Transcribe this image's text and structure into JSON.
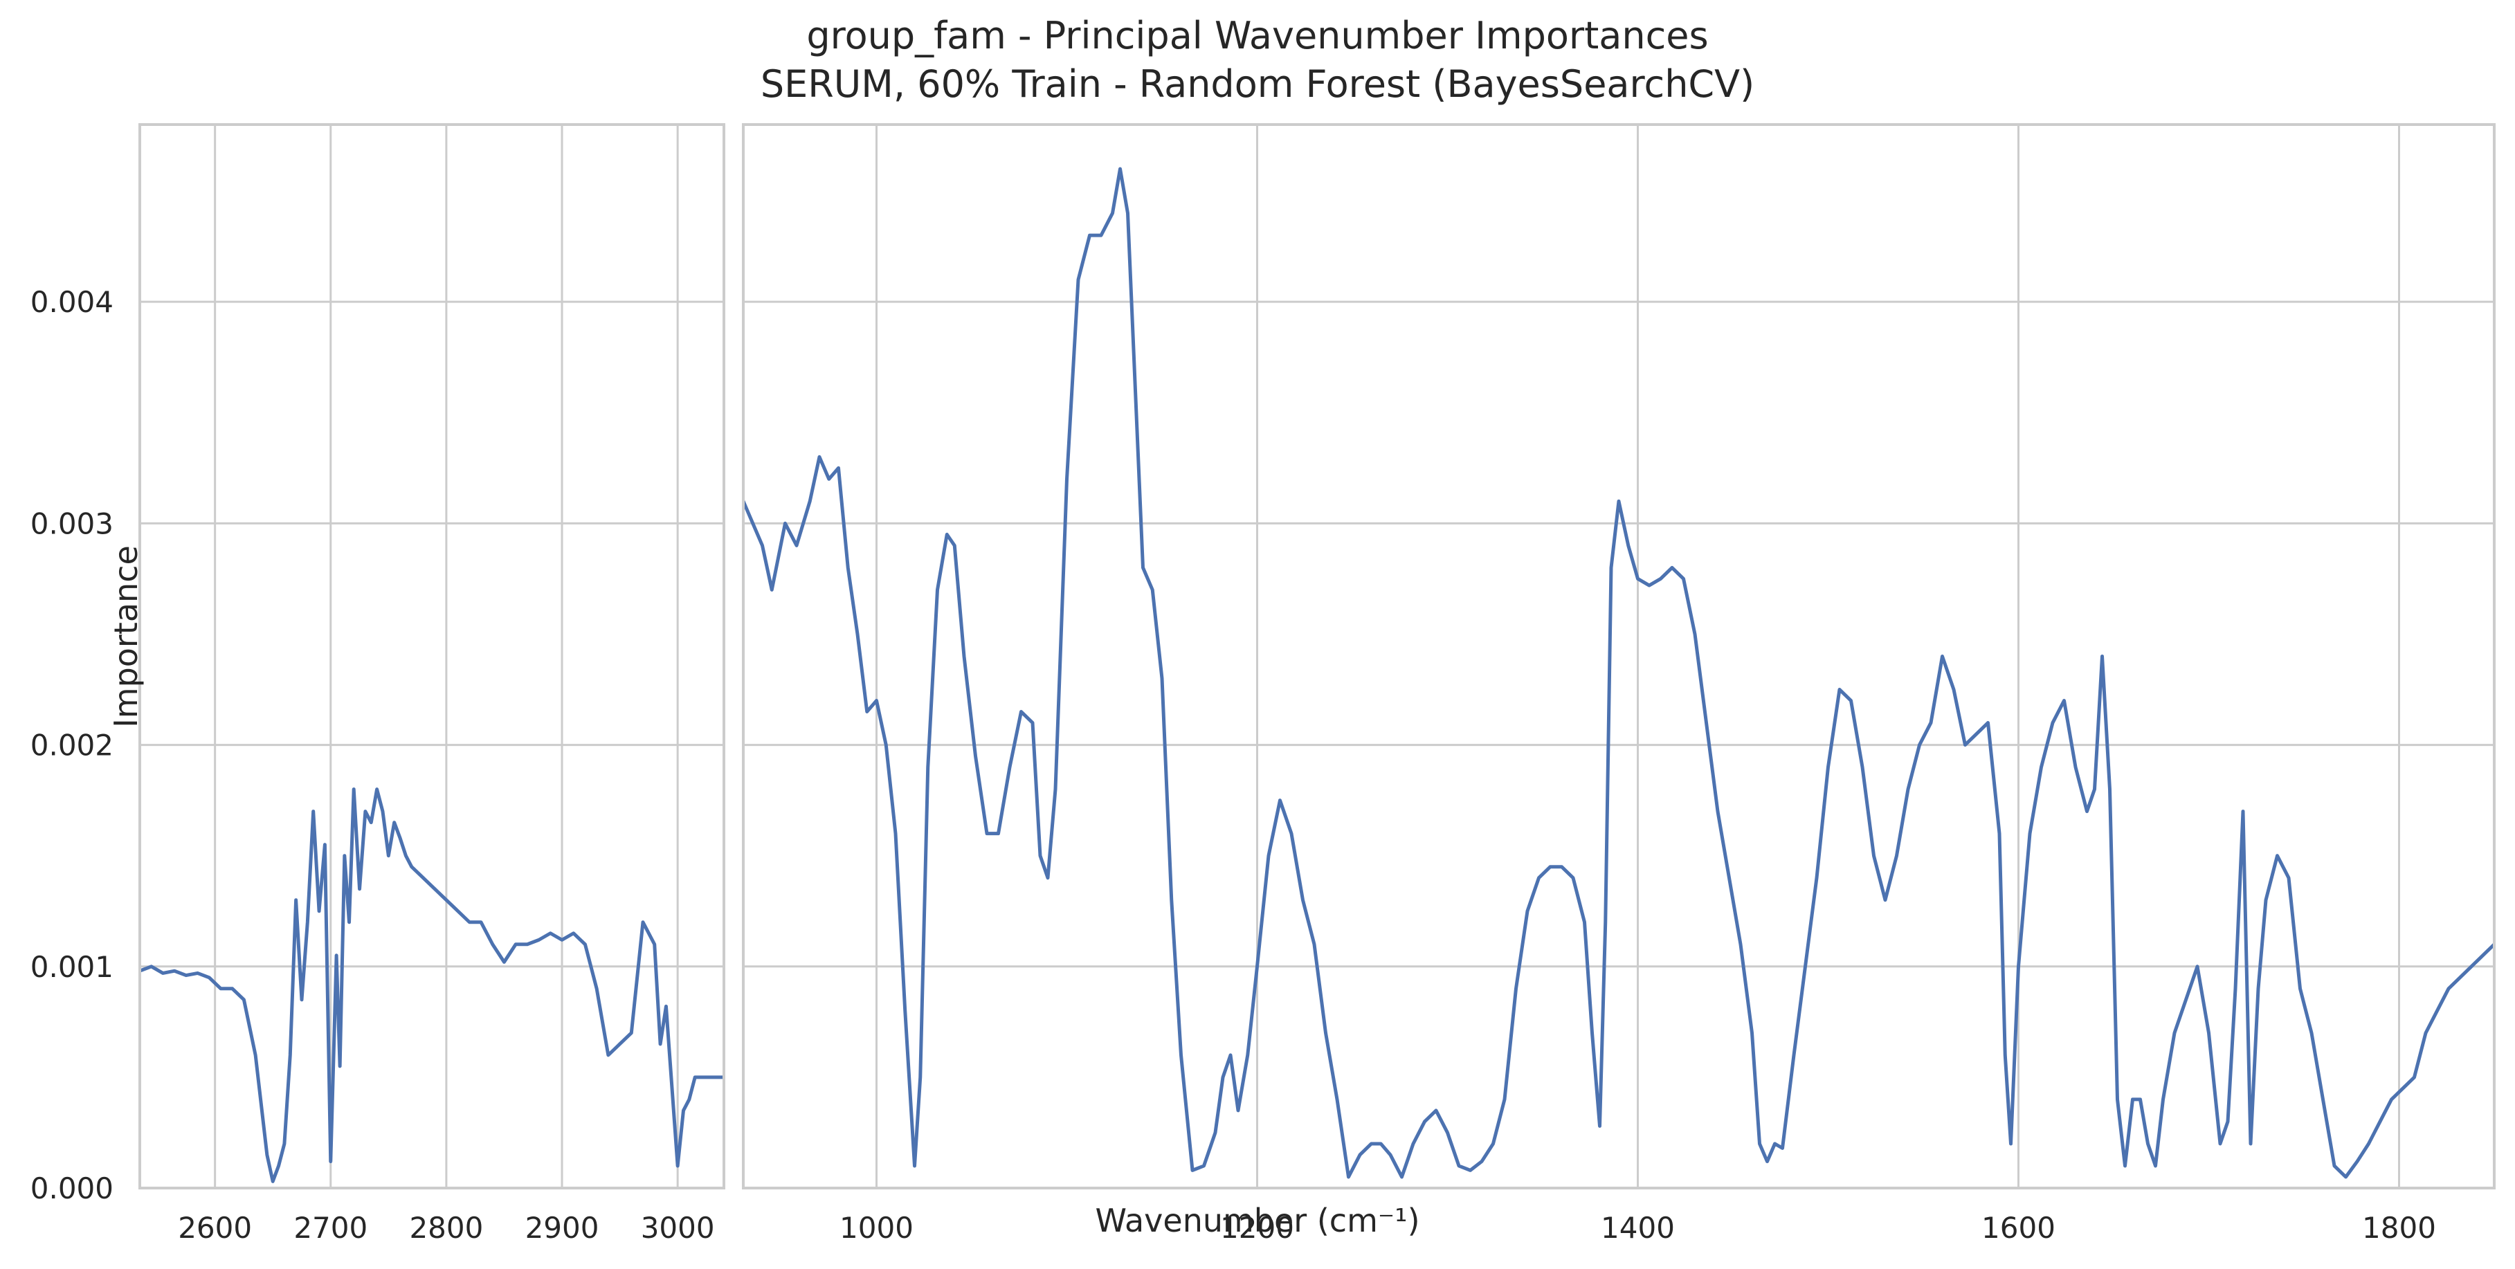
{
  "chart_data": {
    "type": "line",
    "title": "group_fam - Principal Wavenumber Importances",
    "subtitle": "SERUM, 60% Train - Random Forest (BayesSearchCV)",
    "xlabel": "Wavenumber (cm⁻¹)",
    "ylabel": "Importance",
    "ylim": [
      0,
      0.0048
    ],
    "yticks": [
      0.0,
      0.001,
      0.002,
      0.003,
      0.004
    ],
    "ytick_labels": [
      "0.000",
      "0.001",
      "0.002",
      "0.003",
      "0.004"
    ],
    "grid": true,
    "line_color": "#4c72b0",
    "grid_color": "#cccccc",
    "panels": [
      {
        "name": "high-wavenumber",
        "xlim": [
          2535,
          3040
        ],
        "xticks": [
          2600,
          2700,
          2800,
          2900,
          3000
        ],
        "xtick_labels": [
          "2600",
          "2700",
          "2800",
          "2900",
          "3000"
        ],
        "x": [
          2535,
          2545,
          2555,
          2565,
          2575,
          2585,
          2595,
          2605,
          2615,
          2625,
          2635,
          2645,
          2650,
          2655,
          2660,
          2665,
          2670,
          2675,
          2680,
          2685,
          2690,
          2695,
          2700,
          2705,
          2708,
          2712,
          2716,
          2720,
          2725,
          2730,
          2735,
          2740,
          2745,
          2750,
          2755,
          2760,
          2765,
          2770,
          2780,
          2790,
          2800,
          2810,
          2820,
          2830,
          2840,
          2850,
          2860,
          2870,
          2880,
          2890,
          2900,
          2910,
          2920,
          2930,
          2940,
          2950,
          2960,
          2970,
          2980,
          2985,
          2990,
          3000,
          3005,
          3010,
          3015,
          3020,
          3025,
          3030,
          3035,
          3040
        ],
        "y": [
          0.00098,
          0.001,
          0.00097,
          0.00098,
          0.00096,
          0.00097,
          0.00095,
          0.0009,
          0.0009,
          0.00085,
          0.0006,
          0.00015,
          3e-05,
          0.0001,
          0.0002,
          0.0006,
          0.0013,
          0.00085,
          0.0012,
          0.0017,
          0.00125,
          0.00155,
          0.00012,
          0.00105,
          0.00055,
          0.0015,
          0.0012,
          0.0018,
          0.00135,
          0.0017,
          0.00165,
          0.0018,
          0.0017,
          0.0015,
          0.00165,
          0.00158,
          0.0015,
          0.00145,
          0.0014,
          0.00135,
          0.0013,
          0.00125,
          0.0012,
          0.0012,
          0.0011,
          0.00102,
          0.0011,
          0.0011,
          0.00112,
          0.00115,
          0.00112,
          0.00115,
          0.0011,
          0.0009,
          0.0006,
          0.00065,
          0.0007,
          0.0012,
          0.0011,
          0.00065,
          0.00082,
          0.0001,
          0.00035,
          0.0004,
          0.0005,
          0.0005,
          0.0005,
          0.0005,
          0.0005,
          0.0005
        ]
      },
      {
        "name": "fingerprint",
        "xlim": [
          930,
          1850
        ],
        "xticks": [
          1000,
          1200,
          1400,
          1600,
          1800
        ],
        "xtick_labels": [
          "1000",
          "1200",
          "1400",
          "1600",
          "1800"
        ],
        "x": [
          930,
          935,
          940,
          945,
          952,
          958,
          965,
          970,
          975,
          980,
          985,
          990,
          995,
          1000,
          1005,
          1010,
          1015,
          1020,
          1023,
          1027,
          1032,
          1037,
          1041,
          1046,
          1052,
          1058,
          1064,
          1070,
          1076,
          1082,
          1086,
          1090,
          1094,
          1100,
          1106,
          1112,
          1118,
          1124,
          1128,
          1132,
          1136,
          1140,
          1145,
          1150,
          1155,
          1160,
          1166,
          1172,
          1178,
          1182,
          1186,
          1190,
          1195,
          1200,
          1206,
          1212,
          1218,
          1224,
          1230,
          1236,
          1242,
          1248,
          1254,
          1260,
          1265,
          1270,
          1276,
          1282,
          1288,
          1294,
          1300,
          1306,
          1312,
          1318,
          1324,
          1330,
          1336,
          1342,
          1348,
          1354,
          1360,
          1366,
          1372,
          1376,
          1380,
          1383,
          1386,
          1390,
          1395,
          1400,
          1406,
          1412,
          1418,
          1424,
          1430,
          1436,
          1442,
          1448,
          1454,
          1460,
          1464,
          1468,
          1472,
          1476,
          1482,
          1488,
          1494,
          1500,
          1506,
          1512,
          1518,
          1524,
          1530,
          1536,
          1542,
          1548,
          1554,
          1560,
          1566,
          1572,
          1578,
          1584,
          1590,
          1593,
          1596,
          1600,
          1606,
          1612,
          1618,
          1624,
          1630,
          1636,
          1640,
          1644,
          1648,
          1652,
          1656,
          1660,
          1664,
          1668,
          1672,
          1676,
          1682,
          1688,
          1694,
          1700,
          1706,
          1710,
          1714,
          1718,
          1722,
          1726,
          1730,
          1736,
          1742,
          1748,
          1754,
          1760,
          1766,
          1772,
          1778,
          1784,
          1790,
          1796,
          1802,
          1808,
          1814,
          1820,
          1826,
          1832,
          1838,
          1844,
          1850
        ],
        "y": [
          0.0031,
          0.003,
          0.0029,
          0.0027,
          0.003,
          0.0029,
          0.0031,
          0.0033,
          0.0032,
          0.00325,
          0.0028,
          0.0025,
          0.00215,
          0.0022,
          0.002,
          0.0016,
          0.0008,
          0.0001,
          0.0005,
          0.0019,
          0.0027,
          0.00295,
          0.0029,
          0.0024,
          0.00195,
          0.0016,
          0.0016,
          0.0019,
          0.00215,
          0.0021,
          0.0015,
          0.0014,
          0.0018,
          0.0032,
          0.0041,
          0.0043,
          0.0043,
          0.0044,
          0.0046,
          0.0044,
          0.0036,
          0.0028,
          0.0027,
          0.0023,
          0.0013,
          0.0006,
          8e-05,
          0.0001,
          0.00025,
          0.0005,
          0.0006,
          0.00035,
          0.0006,
          0.001,
          0.0015,
          0.00175,
          0.0016,
          0.0013,
          0.0011,
          0.0007,
          0.0004,
          5e-05,
          0.00015,
          0.0002,
          0.0002,
          0.00015,
          5e-05,
          0.0002,
          0.0003,
          0.00035,
          0.00025,
          0.0001,
          8e-05,
          0.00012,
          0.0002,
          0.0004,
          0.0009,
          0.00125,
          0.0014,
          0.00145,
          0.00145,
          0.0014,
          0.0012,
          0.0007,
          0.00028,
          0.0012,
          0.0028,
          0.0031,
          0.0029,
          0.00275,
          0.00272,
          0.00275,
          0.0028,
          0.00275,
          0.0025,
          0.0021,
          0.0017,
          0.0014,
          0.0011,
          0.0007,
          0.0002,
          0.00012,
          0.0002,
          0.00018,
          0.0006,
          0.001,
          0.0014,
          0.0019,
          0.00225,
          0.0022,
          0.0019,
          0.0015,
          0.0013,
          0.0015,
          0.0018,
          0.002,
          0.0021,
          0.0024,
          0.00225,
          0.002,
          0.00205,
          0.0021,
          0.0016,
          0.0006,
          0.0002,
          0.001,
          0.0016,
          0.0019,
          0.0021,
          0.0022,
          0.0019,
          0.0017,
          0.0018,
          0.0024,
          0.0018,
          0.0004,
          0.0001,
          0.0004,
          0.0004,
          0.0002,
          0.0001,
          0.0004,
          0.0007,
          0.00085,
          0.001,
          0.0007,
          0.0002,
          0.0003,
          0.0009,
          0.0017,
          0.0002,
          0.0009,
          0.0013,
          0.0015,
          0.0014,
          0.0009,
          0.0007,
          0.0004,
          0.0001,
          5e-05,
          0.00012,
          0.0002,
          0.0003,
          0.0004,
          0.00045,
          0.0005,
          0.0007,
          0.0008,
          0.0009,
          0.00095,
          0.001,
          0.00105,
          0.0011
        ]
      }
    ]
  }
}
